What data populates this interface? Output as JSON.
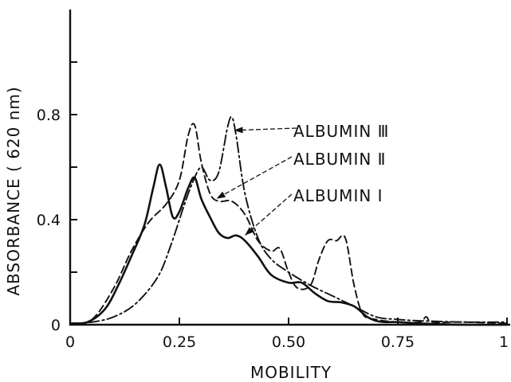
{
  "chart_data": {
    "type": "line",
    "xlabel": "MOBILITY",
    "ylabel": "ABSORBANCE ( 620 nm)",
    "xlim": [
      0,
      1.0
    ],
    "ylim": [
      0,
      1.2
    ],
    "x_ticks": [
      {
        "value": 0,
        "label": "0"
      },
      {
        "value": 0.25,
        "label": "0.25"
      },
      {
        "value": 0.5,
        "label": "0.50"
      },
      {
        "value": 0.75,
        "label": "0.75"
      },
      {
        "value": 1.0,
        "label": "1"
      }
    ],
    "y_ticks": [
      {
        "value": 0,
        "label": "0"
      },
      {
        "value": 0.2,
        "label": ""
      },
      {
        "value": 0.4,
        "label": "0.4"
      },
      {
        "value": 0.6,
        "label": ""
      },
      {
        "value": 0.8,
        "label": "0.8"
      },
      {
        "value": 1.0,
        "label": ""
      }
    ],
    "grid": false,
    "legend": "none",
    "series": [
      {
        "name": "ALBUMIN I",
        "style": "solid",
        "x": [
          0,
          0.04,
          0.08,
          0.11,
          0.14,
          0.17,
          0.19,
          0.205,
          0.22,
          0.235,
          0.25,
          0.27,
          0.285,
          0.3,
          0.32,
          0.34,
          0.36,
          0.38,
          0.4,
          0.43,
          0.46,
          0.5,
          0.53,
          0.56,
          0.59,
          0.62,
          0.65,
          0.68,
          0.7,
          0.72,
          0.75,
          0.8,
          0.9,
          1.0
        ],
        "y": [
          0.005,
          0.01,
          0.06,
          0.15,
          0.26,
          0.38,
          0.52,
          0.61,
          0.52,
          0.41,
          0.43,
          0.52,
          0.56,
          0.48,
          0.41,
          0.35,
          0.33,
          0.34,
          0.32,
          0.26,
          0.19,
          0.16,
          0.16,
          0.12,
          0.09,
          0.085,
          0.07,
          0.03,
          0.015,
          0.01,
          0.01,
          0.005,
          0.0,
          0.0
        ]
      },
      {
        "name": "ALBUMIN II",
        "style": "dashed",
        "x": [
          0,
          0.05,
          0.1,
          0.14,
          0.18,
          0.22,
          0.25,
          0.27,
          0.285,
          0.3,
          0.32,
          0.34,
          0.37,
          0.4,
          0.43,
          0.46,
          0.48,
          0.5,
          0.52,
          0.55,
          0.57,
          0.59,
          0.61,
          0.63,
          0.65,
          0.67,
          0.7,
          0.75,
          0.8,
          0.815,
          0.83,
          0.9,
          1.0
        ],
        "y": [
          0.005,
          0.02,
          0.14,
          0.28,
          0.39,
          0.46,
          0.55,
          0.72,
          0.76,
          0.62,
          0.5,
          0.47,
          0.47,
          0.42,
          0.32,
          0.28,
          0.29,
          0.2,
          0.14,
          0.15,
          0.25,
          0.32,
          0.32,
          0.33,
          0.15,
          0.04,
          0.02,
          0.01,
          0.01,
          0.03,
          0.01,
          0.01,
          0.005
        ]
      },
      {
        "name": "ALBUMIN III",
        "style": "dash-dot",
        "x": [
          0,
          0.05,
          0.1,
          0.15,
          0.2,
          0.23,
          0.26,
          0.28,
          0.3,
          0.32,
          0.34,
          0.36,
          0.37,
          0.38,
          0.4,
          0.43,
          0.46,
          0.5,
          0.55,
          0.6,
          0.65,
          0.7,
          0.75,
          0.8,
          0.9,
          1.0
        ],
        "y": [
          0.005,
          0.01,
          0.03,
          0.08,
          0.18,
          0.3,
          0.45,
          0.54,
          0.6,
          0.55,
          0.58,
          0.75,
          0.79,
          0.72,
          0.5,
          0.33,
          0.25,
          0.2,
          0.15,
          0.11,
          0.07,
          0.03,
          0.02,
          0.015,
          0.01,
          0.01
        ]
      }
    ],
    "annotations": [
      {
        "text": "ALBUMIN Ⅲ",
        "series": "ALBUMIN III",
        "target": {
          "x": 0.375,
          "y": 0.74
        }
      },
      {
        "text": "ALBUMIN Ⅱ",
        "series": "ALBUMIN II",
        "target": {
          "x": 0.335,
          "y": 0.48
        }
      },
      {
        "text": "ALBUMIN Ⅰ",
        "series": "ALBUMIN I",
        "target": {
          "x": 0.4,
          "y": 0.34
        }
      }
    ]
  }
}
